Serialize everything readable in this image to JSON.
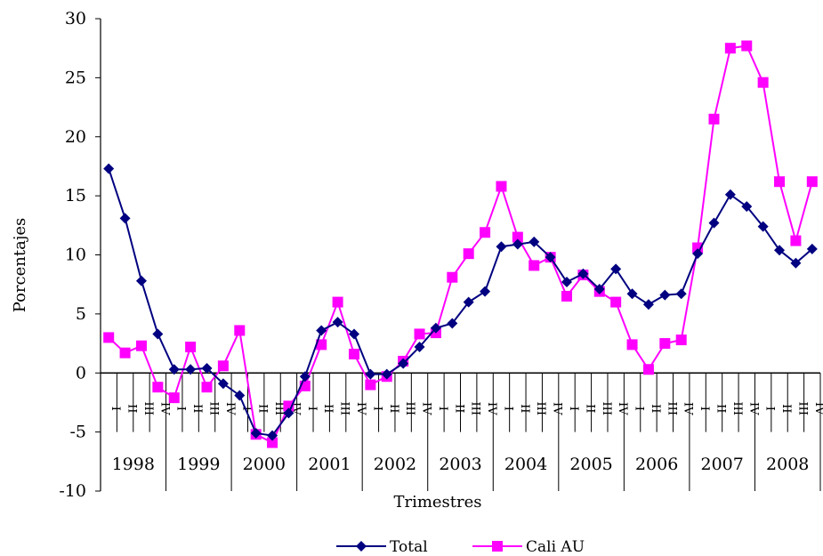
{
  "chart_data": {
    "type": "line",
    "xlabel": "Trimestres",
    "ylabel": "Porcentajes",
    "ylim": [
      -10,
      30
    ],
    "yticks": [
      -10,
      -5,
      0,
      5,
      10,
      15,
      20,
      25,
      30
    ],
    "years": [
      "1998",
      "1999",
      "2000",
      "2001",
      "2002",
      "2003",
      "2004",
      "2005",
      "2006",
      "2007",
      "2008"
    ],
    "quarters": [
      "I",
      "II",
      "III",
      "IV"
    ],
    "legend_position": "bottom",
    "series": [
      {
        "name": "Total",
        "color": "#000080",
        "marker": "diamond",
        "values": [
          17.3,
          13.1,
          7.8,
          3.3,
          0.3,
          0.3,
          0.4,
          -0.9,
          -1.9,
          -5.1,
          -5.3,
          -3.4,
          -0.3,
          3.6,
          4.3,
          3.3,
          -0.1,
          -0.1,
          0.8,
          2.2,
          3.8,
          4.2,
          6.0,
          6.9,
          10.7,
          10.9,
          11.1,
          9.8,
          7.7,
          8.4,
          7.1,
          8.8,
          6.7,
          5.8,
          6.6,
          6.7,
          10.1,
          12.7,
          15.1,
          14.1,
          12.4,
          10.4,
          9.3,
          10.5
        ]
      },
      {
        "name": "Cali AU",
        "color": "#FF00FF",
        "marker": "square",
        "values": [
          3.0,
          1.7,
          2.3,
          -1.2,
          -2.1,
          2.2,
          -1.2,
          0.6,
          3.6,
          -5.2,
          -5.9,
          -2.8,
          -1.1,
          2.4,
          6.0,
          1.6,
          -1.0,
          -0.3,
          1.0,
          3.3,
          3.4,
          8.1,
          10.1,
          11.9,
          15.8,
          11.5,
          9.1,
          9.8,
          6.5,
          8.3,
          6.9,
          6.0,
          2.4,
          0.3,
          2.5,
          2.8,
          10.6,
          21.5,
          27.5,
          27.7,
          24.6,
          16.2,
          11.2,
          16.2
        ]
      }
    ]
  }
}
